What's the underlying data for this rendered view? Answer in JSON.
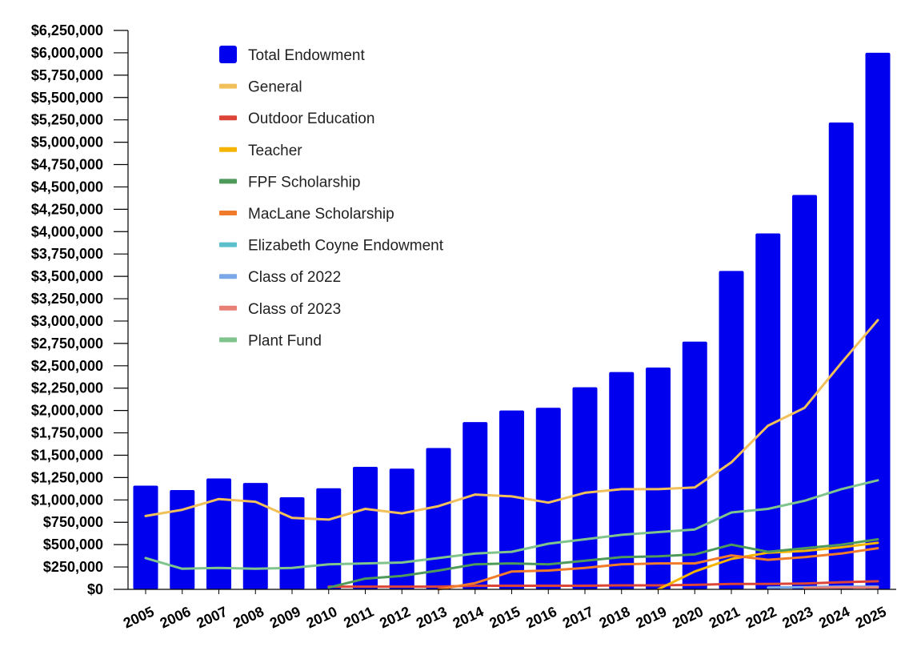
{
  "chart_data": {
    "type": "bar",
    "title": "",
    "xlabel": "",
    "ylabel": "",
    "ylim": [
      0,
      6250000
    ],
    "y_ticks": [
      0,
      250000,
      500000,
      750000,
      1000000,
      1250000,
      1500000,
      1750000,
      2000000,
      2250000,
      2500000,
      2750000,
      3000000,
      3250000,
      3500000,
      3750000,
      4000000,
      4250000,
      4500000,
      4750000,
      5000000,
      5250000,
      5500000,
      5750000,
      6000000,
      6250000
    ],
    "y_tick_labels": [
      "$0",
      "$250,000",
      "$500,000",
      "$750,000",
      "$1,000,000",
      "$1,250,000",
      "$1,500,000",
      "$1,750,000",
      "$2,000,000",
      "$2,250,000",
      "$2,500,000",
      "$2,750,000",
      "$3,000,000",
      "$3,250,000",
      "$3,500,000",
      "$3,750,000",
      "$4,000,000",
      "$4,250,000",
      "$4,500,000",
      "$4,750,000",
      "$5,000,000",
      "$5,250,000",
      "$5,500,000",
      "$5,750,000",
      "$6,000,000",
      "$6,250,000"
    ],
    "categories": [
      "2005",
      "2006",
      "2007",
      "2008",
      "2009",
      "2010",
      "2011",
      "2012",
      "2013",
      "2014",
      "2015",
      "2016",
      "2017",
      "2018",
      "2019",
      "2020",
      "2021",
      "2022",
      "2023",
      "2024",
      "2025"
    ],
    "grid": false,
    "legend_position": "top-left",
    "series": [
      {
        "name": "Total Endowment",
        "kind": "bar",
        "color": "#0000ee",
        "values": [
          1160000,
          1110000,
          1240000,
          1190000,
          1030000,
          1130000,
          1370000,
          1350000,
          1580000,
          1870000,
          2000000,
          2030000,
          2260000,
          2430000,
          2480000,
          2770000,
          3560000,
          3980000,
          4410000,
          5220000,
          6000000
        ]
      },
      {
        "name": "General",
        "kind": "line",
        "color": "#f1c05a",
        "values": [
          820000,
          890000,
          1010000,
          980000,
          800000,
          780000,
          900000,
          850000,
          930000,
          1060000,
          1040000,
          970000,
          1080000,
          1120000,
          1120000,
          1140000,
          1420000,
          1830000,
          2030000,
          2530000,
          3010000
        ]
      },
      {
        "name": "Outdoor Education",
        "kind": "line",
        "color": "#db4437",
        "values": [
          null,
          null,
          null,
          null,
          null,
          30000,
          30000,
          30000,
          30000,
          40000,
          40000,
          40000,
          40000,
          45000,
          45000,
          50000,
          60000,
          60000,
          65000,
          80000,
          90000
        ]
      },
      {
        "name": "Teacher",
        "kind": "line",
        "color": "#f4b400",
        "values": [
          null,
          null,
          null,
          null,
          null,
          null,
          null,
          null,
          null,
          null,
          null,
          null,
          null,
          null,
          0,
          200000,
          340000,
          410000,
          430000,
          470000,
          520000
        ]
      },
      {
        "name": "FPF Scholarship",
        "kind": "line",
        "color": "#4e9a5a",
        "values": [
          null,
          null,
          null,
          null,
          null,
          20000,
          120000,
          150000,
          210000,
          280000,
          290000,
          280000,
          320000,
          360000,
          370000,
          390000,
          500000,
          420000,
          460000,
          500000,
          560000
        ]
      },
      {
        "name": "MacLane Scholarship",
        "kind": "line",
        "color": "#f07b2a",
        "values": [
          null,
          null,
          null,
          null,
          null,
          null,
          null,
          null,
          0,
          70000,
          200000,
          210000,
          240000,
          280000,
          290000,
          290000,
          380000,
          330000,
          360000,
          400000,
          460000
        ]
      },
      {
        "name": "Elizabeth Coyne Endowment",
        "kind": "line",
        "color": "#5cc0cc",
        "values": [
          null,
          null,
          null,
          null,
          null,
          null,
          null,
          null,
          null,
          null,
          null,
          null,
          null,
          null,
          null,
          null,
          null,
          null,
          null,
          null,
          null
        ]
      },
      {
        "name": "Class of 2022",
        "kind": "line",
        "color": "#7aa8e8",
        "values": [
          null,
          null,
          null,
          null,
          null,
          null,
          null,
          null,
          null,
          null,
          null,
          null,
          null,
          null,
          null,
          null,
          null,
          20000,
          25000,
          30000,
          30000
        ]
      },
      {
        "name": "Class of 2023",
        "kind": "line",
        "color": "#e88078",
        "values": [
          null,
          null,
          null,
          null,
          null,
          null,
          null,
          null,
          null,
          null,
          null,
          null,
          null,
          null,
          null,
          null,
          null,
          null,
          15000,
          20000,
          20000
        ]
      },
      {
        "name": "Plant Fund",
        "kind": "line",
        "color": "#7fc48c",
        "values": [
          350000,
          230000,
          240000,
          230000,
          240000,
          280000,
          290000,
          300000,
          350000,
          400000,
          420000,
          510000,
          560000,
          610000,
          640000,
          670000,
          860000,
          900000,
          990000,
          1120000,
          1220000
        ]
      }
    ]
  }
}
